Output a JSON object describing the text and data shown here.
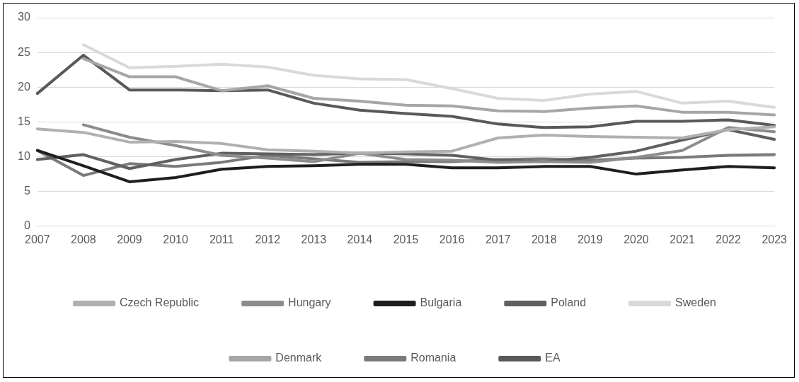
{
  "chart_data": {
    "type": "line",
    "categories": [
      "2007",
      "2008",
      "2009",
      "2010",
      "2011",
      "2012",
      "2013",
      "2014",
      "2015",
      "2016",
      "2017",
      "2018",
      "2019",
      "2020",
      "2021",
      "2022",
      "2023"
    ],
    "ylim": [
      0,
      30
    ],
    "yticks": [
      0,
      5,
      10,
      15,
      20,
      25,
      30
    ],
    "grid": "y",
    "legend": "bottom",
    "marker": "none",
    "line_style": "solid",
    "series": [
      {
        "name": "Czech Republic",
        "color": "#b0b0b0",
        "values": [
          14.0,
          13.5,
          12.1,
          12.2,
          11.9,
          11.0,
          10.8,
          10.5,
          10.7,
          10.8,
          12.7,
          13.1,
          12.9,
          12.8,
          12.7,
          13.9,
          14.3
        ]
      },
      {
        "name": "Hungary",
        "color": "#8c8c8c",
        "values": [
          null,
          14.6,
          12.8,
          11.6,
          10.2,
          9.8,
          9.3,
          10.5,
          9.6,
          9.5,
          9.2,
          9.3,
          9.2,
          9.9,
          10.9,
          14.2,
          13.6
        ]
      },
      {
        "name": "Bulgaria",
        "color": "#1e1e1e",
        "values": [
          10.9,
          8.7,
          6.4,
          7.0,
          8.2,
          8.6,
          8.7,
          8.9,
          8.9,
          8.4,
          8.4,
          8.6,
          8.6,
          7.5,
          8.1,
          8.6,
          8.4
        ]
      },
      {
        "name": "Poland",
        "color": "#606060",
        "values": [
          9.6,
          10.3,
          8.3,
          9.6,
          10.5,
          10.4,
          10.3,
          10.5,
          10.4,
          10.2,
          9.5,
          9.3,
          9.9,
          10.8,
          12.4,
          13.9,
          12.5
        ]
      },
      {
        "name": "Sweden",
        "color": "#d9d9d9",
        "values": [
          null,
          26.1,
          22.8,
          23.0,
          23.3,
          22.9,
          21.7,
          21.2,
          21.1,
          19.8,
          18.4,
          18.1,
          19.0,
          19.4,
          17.7,
          18.0,
          17.1
        ]
      },
      {
        "name": "Denmark",
        "color": "#a6a6a6",
        "values": [
          null,
          24.1,
          21.5,
          21.5,
          19.5,
          20.2,
          18.4,
          18.0,
          17.4,
          17.3,
          16.6,
          16.5,
          17.0,
          17.3,
          16.4,
          16.4,
          16.0
        ]
      },
      {
        "name": "Romania",
        "color": "#7a7a7a",
        "values": [
          10.9,
          7.3,
          9.0,
          8.6,
          9.2,
          10.2,
          9.7,
          9.2,
          9.3,
          9.3,
          9.6,
          9.7,
          9.5,
          9.8,
          9.9,
          10.2,
          10.3
        ]
      },
      {
        "name": "EA",
        "color": "#595959",
        "values": [
          19.1,
          24.6,
          19.6,
          19.6,
          19.5,
          19.6,
          17.7,
          16.7,
          16.2,
          15.8,
          14.7,
          14.2,
          14.3,
          15.1,
          15.1,
          15.3,
          14.5
        ]
      }
    ]
  }
}
